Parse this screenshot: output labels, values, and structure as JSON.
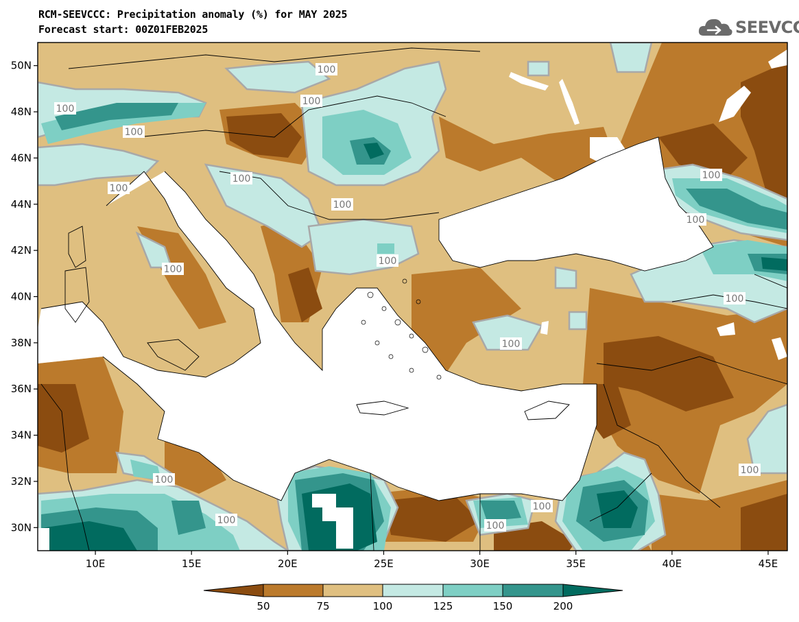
{
  "header": {
    "title_line1": "RCM-SEEVCCC: Precipitation anomaly (%) for MAY 2025",
    "title_line2": "Forecast start: 00Z01FEB2025"
  },
  "logo": {
    "text": "SEEVCCC",
    "icon": "cloud-icon"
  },
  "map": {
    "lon_range": [
      7,
      46
    ],
    "lat_range": [
      29,
      51
    ],
    "lon_ticks": [
      "10E",
      "15E",
      "20E",
      "25E",
      "30E",
      "35E",
      "40E",
      "45E"
    ],
    "lat_ticks": [
      "50N",
      "48N",
      "46N",
      "44N",
      "42N",
      "40N",
      "38N",
      "36N",
      "34N",
      "32N",
      "30N"
    ],
    "contour_labels": [
      "100",
      "100",
      "100",
      "100",
      "100",
      "100",
      "100",
      "100",
      "100",
      "100",
      "100",
      "100",
      "100",
      "100",
      "100",
      "100",
      "100",
      "100"
    ]
  },
  "colorbar": {
    "labels": [
      "50",
      "75",
      "100",
      "125",
      "150",
      "200"
    ],
    "colors": [
      "#8b4c10",
      "#bb7a2c",
      "#dfbf80",
      "#c4e9e3",
      "#7ecfc4",
      "#34958c",
      "#016b5f"
    ]
  }
}
